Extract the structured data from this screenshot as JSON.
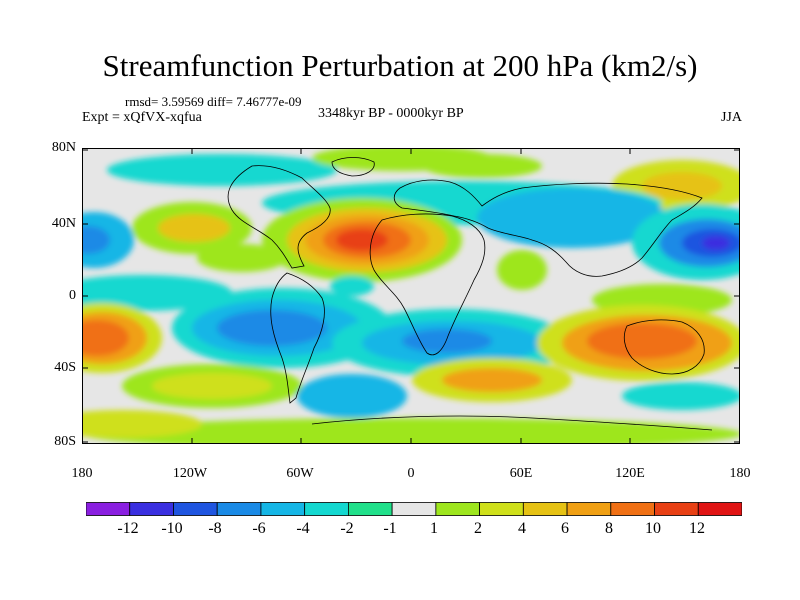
{
  "title": "Streamfunction Perturbation at 200 hPa (km2/s)",
  "stats": "rmsd= 3.59569 diff= 7.46777e-09",
  "experiment": "Expt = xQfVX-xqfua",
  "period": "3348kyr BP - 0000kyr BP",
  "season": "JJA",
  "lat_ticks": [
    "80N",
    "40N",
    "0",
    "40S",
    "80S"
  ],
  "lon_ticks": [
    "180",
    "120W",
    "60W",
    "0",
    "60E",
    "120E",
    "180"
  ],
  "colorbar": {
    "labels": [
      "-12",
      "-10",
      "-8",
      "-6",
      "-4",
      "-2",
      "-1",
      "1",
      "2",
      "4",
      "6",
      "8",
      "10",
      "12"
    ],
    "colors": [
      "#8a1fe0",
      "#3a2fe0",
      "#1f55e0",
      "#1a8ae6",
      "#15b6e6",
      "#14d8d0",
      "#20e08a",
      "#e6e6e6",
      "#9ee61e",
      "#cfe01a",
      "#e6c214",
      "#f0a014",
      "#f07014",
      "#e84014",
      "#e01414"
    ]
  }
}
